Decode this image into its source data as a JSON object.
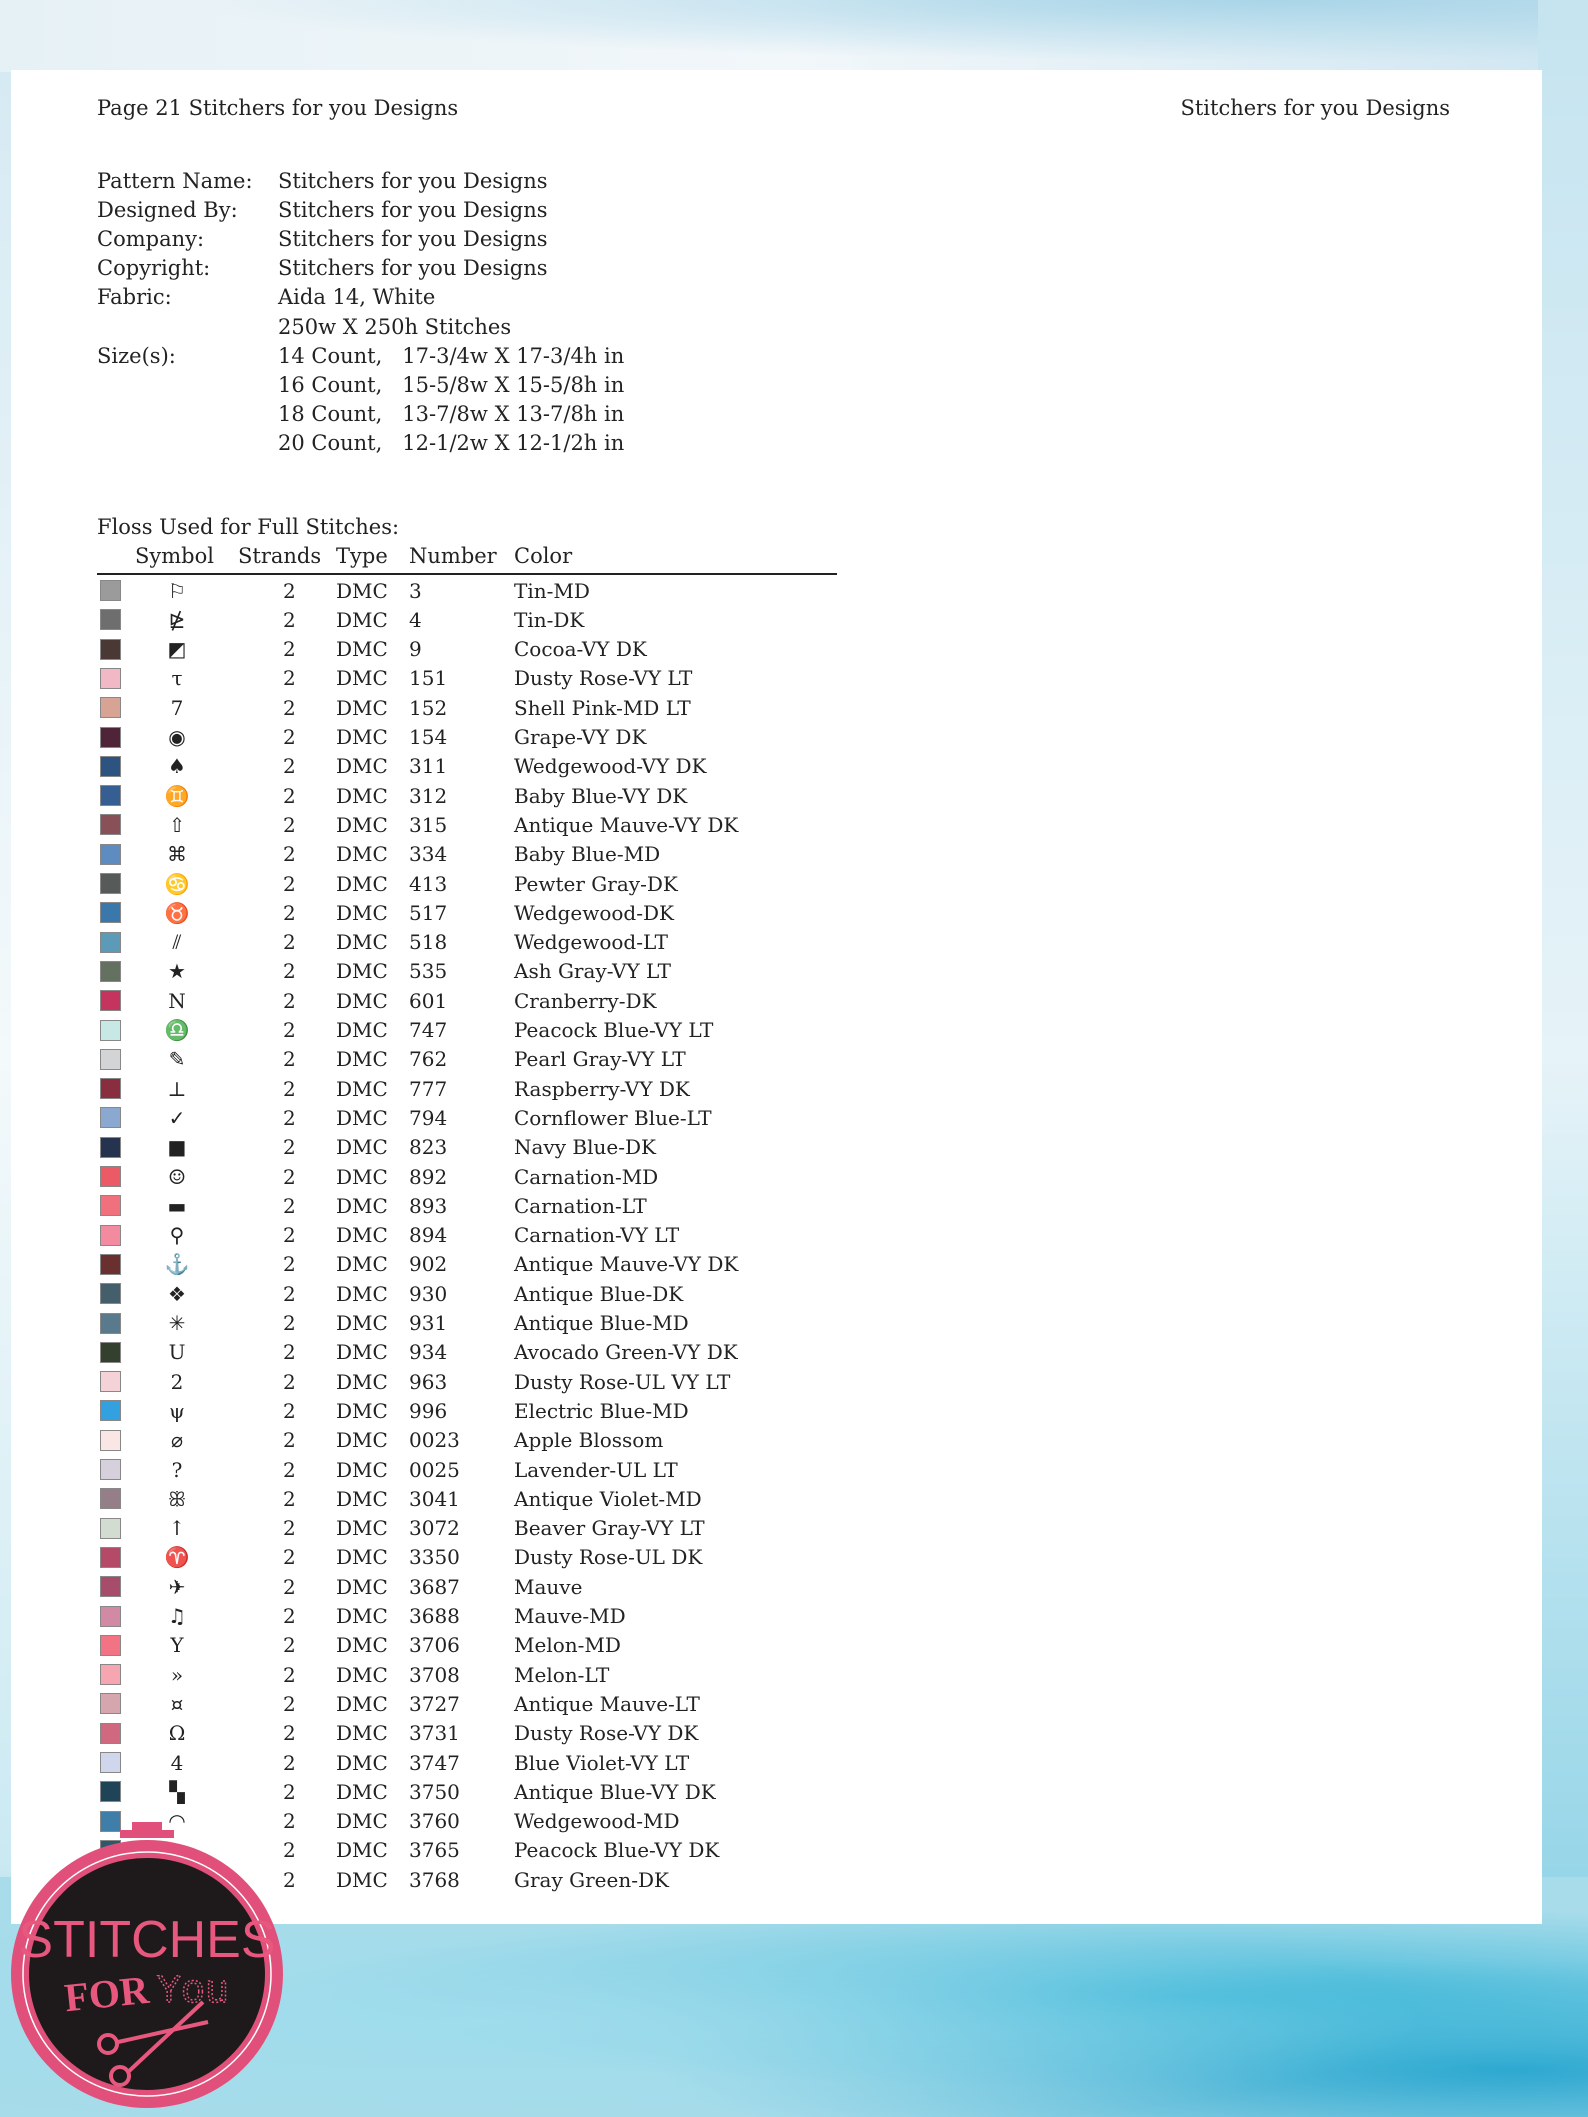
{
  "header": {
    "left": "Page 21  Stitchers for you Designs",
    "right": "Stitchers for you Designs"
  },
  "info": [
    {
      "label": "Pattern Name:",
      "value": "Stitchers for you Designs"
    },
    {
      "label": "Designed By:",
      "value": "Stitchers for you Designs"
    },
    {
      "label": "Company:",
      "value": "Stitchers for you Designs"
    },
    {
      "label": "Copyright:",
      "value": "Stitchers for you Designs"
    },
    {
      "label": "Fabric:",
      "value": "Aida 14, White"
    },
    {
      "label": "",
      "value": "250w X 250h Stitches"
    },
    {
      "label": "Size(s):",
      "value": "14 Count,   17-3/4w X 17-3/4h in"
    },
    {
      "label": "",
      "value": "16 Count,   15-5/8w X 15-5/8h in"
    },
    {
      "label": "",
      "value": "18 Count,   13-7/8w X 13-7/8h in"
    },
    {
      "label": "",
      "value": "20 Count,   12-1/2w X 12-1/2h in"
    }
  ],
  "floss_title": "Floss Used for Full Stitches:",
  "columns": {
    "symbol": "Symbol",
    "strands": "Strands",
    "type": "Type",
    "number": "Number",
    "color": "Color"
  },
  "rows": [
    [
      "#9b9b9b",
      "⚐",
      "2",
      "DMC",
      "3",
      "Tin-MD"
    ],
    [
      "#6e6e6e",
      "⋭",
      "2",
      "DMC",
      "4",
      "Tin-DK"
    ],
    [
      "#4a3834",
      "◩",
      "2",
      "DMC",
      "9",
      "Cocoa-VY DK"
    ],
    [
      "#f2b8c6",
      "τ",
      "2",
      "DMC",
      "151",
      "Dusty Rose-VY LT"
    ],
    [
      "#d7a394",
      "7",
      "2",
      "DMC",
      "152",
      "Shell Pink-MD LT"
    ],
    [
      "#4f2438",
      "◉",
      "2",
      "DMC",
      "154",
      "Grape-VY DK"
    ],
    [
      "#2d5480",
      "♠",
      "2",
      "DMC",
      "311",
      "Wedgewood-VY DK"
    ],
    [
      "#355e92",
      "♊",
      "2",
      "DMC",
      "312",
      "Baby Blue-VY DK"
    ],
    [
      "#8a5058",
      "⇧",
      "2",
      "DMC",
      "315",
      "Antique Mauve-VY DK"
    ],
    [
      "#5e8cc0",
      "⌘",
      "2",
      "DMC",
      "334",
      "Baby Blue-MD"
    ],
    [
      "#565a58",
      "♋",
      "2",
      "DMC",
      "413",
      "Pewter Gray-DK"
    ],
    [
      "#3a78ac",
      "♉",
      "2",
      "DMC",
      "517",
      "Wedgewood-DK"
    ],
    [
      "#5b9bb8",
      "⫽",
      "2",
      "DMC",
      "518",
      "Wedgewood-LT"
    ],
    [
      "#647060",
      "★",
      "2",
      "DMC",
      "535",
      "Ash Gray-VY LT"
    ],
    [
      "#c4345e",
      "N",
      "2",
      "DMC",
      "601",
      "Cranberry-DK"
    ],
    [
      "#c8e8e6",
      "♎",
      "2",
      "DMC",
      "747",
      "Peacock Blue-VY LT"
    ],
    [
      "#d2d4d6",
      "✎",
      "2",
      "DMC",
      "762",
      "Pearl Gray-VY LT"
    ],
    [
      "#882e3e",
      "⊥",
      "2",
      "DMC",
      "777",
      "Raspberry-VY DK"
    ],
    [
      "#8aa8d0",
      "✓",
      "2",
      "DMC",
      "794",
      "Cornflower Blue-LT"
    ],
    [
      "#26334e",
      "■",
      "2",
      "DMC",
      "823",
      "Navy Blue-DK"
    ],
    [
      "#ec5a66",
      "☺",
      "2",
      "DMC",
      "892",
      "Carnation-MD"
    ],
    [
      "#f0707e",
      "▬",
      "2",
      "DMC",
      "893",
      "Carnation-LT"
    ],
    [
      "#f28aa0",
      "⚲",
      "2",
      "DMC",
      "894",
      "Carnation-VY LT"
    ],
    [
      "#6a3030",
      "⚓",
      "2",
      "DMC",
      "902",
      "Antique Mauve-VY DK"
    ],
    [
      "#455e6c",
      "❖",
      "2",
      "DMC",
      "930",
      "Antique Blue-DK"
    ],
    [
      "#587a8c",
      "✳",
      "2",
      "DMC",
      "931",
      "Antique Blue-MD"
    ],
    [
      "#34402e",
      "U",
      "2",
      "DMC",
      "934",
      "Avocado Green-VY DK"
    ],
    [
      "#f5d2d8",
      "2",
      "2",
      "DMC",
      "963",
      "Dusty Rose-UL VY LT"
    ],
    [
      "#33a1e0",
      "ψ",
      "2",
      "DMC",
      "996",
      "Electric Blue-MD"
    ],
    [
      "#fbe6e6",
      "⌀",
      "2",
      "DMC",
      "0023",
      "Apple Blossom"
    ],
    [
      "#d6d0dc",
      "?",
      "2",
      "DMC",
      "0025",
      "Lavender-UL LT"
    ],
    [
      "#957e88",
      "ꕥ",
      "2",
      "DMC",
      "3041",
      "Antique Violet-MD"
    ],
    [
      "#d2dcd0",
      "↑",
      "2",
      "DMC",
      "3072",
      "Beaver Gray-VY LT"
    ],
    [
      "#b44a68",
      "♈",
      "2",
      "DMC",
      "3350",
      "Dusty Rose-UL DK"
    ],
    [
      "#a84c6c",
      "✈",
      "2",
      "DMC",
      "3687",
      "Mauve"
    ],
    [
      "#d28aa4",
      "♫",
      "2",
      "DMC",
      "3688",
      "Mauve-MD"
    ],
    [
      "#f27484",
      "Y",
      "2",
      "DMC",
      "3706",
      "Melon-MD"
    ],
    [
      "#f6a6b0",
      "»",
      "2",
      "DMC",
      "3708",
      "Melon-LT"
    ],
    [
      "#d6a6ae",
      "¤",
      "2",
      "DMC",
      "3727",
      "Antique Mauve-LT"
    ],
    [
      "#d06880",
      "Ω",
      "2",
      "DMC",
      "3731",
      "Dusty Rose-VY DK"
    ],
    [
      "#d0d6ec",
      "4",
      "2",
      "DMC",
      "3747",
      "Blue Violet-VY LT"
    ],
    [
      "#1f4458",
      "▚",
      "2",
      "DMC",
      "3750",
      "Antique Blue-VY DK"
    ],
    [
      "#3e7ea8",
      "◠",
      "2",
      "DMC",
      "3760",
      "Wedgewood-MD"
    ],
    [
      "#2c5a6a",
      "",
      "2",
      "DMC",
      "3765",
      "Peacock Blue-VY DK"
    ],
    [
      "#4a5650",
      "",
      "2",
      "DMC",
      "3768",
      "Gray Green-DK"
    ]
  ],
  "logo": {
    "text1": "STITCHES",
    "text2": "FOR",
    "text3": "You",
    "ring_color": "#e0507a"
  }
}
